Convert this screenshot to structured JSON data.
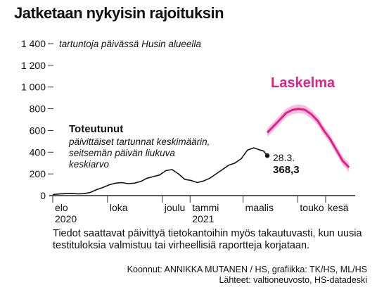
{
  "title": "Jatketaan nykyisin rajoituksin",
  "footnote": "Tiedot saattavat päivittyä tietokantoihin myös takautuvasti, kun uusia testituloksia valmistuu tai virheellisiä raportteja korjataan.",
  "credits": {
    "line1": "Koonnut: ANNIKKA MUTANEN / HS, grafiikka: TK/HS, ML/HS",
    "line2": "Lähteet: valtioneuvosto, HS-datadeski"
  },
  "colors": {
    "actual": "#111111",
    "forecast": "#e0218a",
    "band": "#f5a9cf",
    "axis": "#222222"
  },
  "chart_data": {
    "type": "line",
    "ylabel": "tartuntoja päivässä Husin alueella",
    "ylim": [
      0,
      1400
    ],
    "y_ticks": [
      0,
      200,
      400,
      600,
      800,
      1000,
      1200,
      1400
    ],
    "y_tick_labels": [
      "0",
      "200",
      "400",
      "600",
      "800",
      "1 000",
      "1 200",
      "1 400"
    ],
    "xlim": [
      "2020-08-01",
      "2021-06-30"
    ],
    "x_ticks": [
      {
        "date": "2020-08-01",
        "label": "elo",
        "sub": "2020"
      },
      {
        "date": "2020-10-01",
        "label": "loka",
        "sub": ""
      },
      {
        "date": "2020-12-01",
        "label": "joulu",
        "sub": ""
      },
      {
        "date": "2021-01-01",
        "label": "tammi",
        "sub": "2021"
      },
      {
        "date": "2021-03-01",
        "label": "maalis",
        "sub": ""
      },
      {
        "date": "2021-05-01",
        "label": "touko",
        "sub": ""
      },
      {
        "date": "2021-06-01",
        "label": "kesä",
        "sub": ""
      }
    ],
    "series": [
      {
        "name": "Toteutunut",
        "description": "päivittäiset tartunnat keskimäärin, seitsemän päivän liukuva keskiarvo",
        "points": [
          [
            "2020-08-01",
            10
          ],
          [
            "2020-08-08",
            15
          ],
          [
            "2020-08-15",
            18
          ],
          [
            "2020-08-22",
            20
          ],
          [
            "2020-08-29",
            16
          ],
          [
            "2020-09-05",
            18
          ],
          [
            "2020-09-12",
            30
          ],
          [
            "2020-09-19",
            55
          ],
          [
            "2020-09-26",
            75
          ],
          [
            "2020-10-03",
            100
          ],
          [
            "2020-10-10",
            115
          ],
          [
            "2020-10-17",
            120
          ],
          [
            "2020-10-24",
            110
          ],
          [
            "2020-10-31",
            115
          ],
          [
            "2020-11-07",
            130
          ],
          [
            "2020-11-14",
            160
          ],
          [
            "2020-11-21",
            175
          ],
          [
            "2020-11-28",
            190
          ],
          [
            "2020-12-05",
            230
          ],
          [
            "2020-12-12",
            240
          ],
          [
            "2020-12-19",
            200
          ],
          [
            "2020-12-26",
            150
          ],
          [
            "2021-01-02",
            140
          ],
          [
            "2021-01-09",
            120
          ],
          [
            "2021-01-16",
            135
          ],
          [
            "2021-01-23",
            160
          ],
          [
            "2021-01-30",
            200
          ],
          [
            "2021-02-06",
            240
          ],
          [
            "2021-02-13",
            280
          ],
          [
            "2021-02-20",
            300
          ],
          [
            "2021-02-27",
            340
          ],
          [
            "2021-03-06",
            420
          ],
          [
            "2021-03-13",
            440
          ],
          [
            "2021-03-20",
            420
          ],
          [
            "2021-03-24",
            410
          ],
          [
            "2021-03-28",
            368.3
          ]
        ]
      },
      {
        "name": "Laskelma",
        "points": [
          [
            "2021-03-28",
            580
          ],
          [
            "2021-04-04",
            640
          ],
          [
            "2021-04-11",
            700
          ],
          [
            "2021-04-18",
            760
          ],
          [
            "2021-04-25",
            790
          ],
          [
            "2021-05-02",
            800
          ],
          [
            "2021-05-09",
            790
          ],
          [
            "2021-05-16",
            750
          ],
          [
            "2021-05-23",
            690
          ],
          [
            "2021-05-30",
            600
          ],
          [
            "2021-06-06",
            520
          ],
          [
            "2021-06-13",
            420
          ],
          [
            "2021-06-20",
            320
          ],
          [
            "2021-06-27",
            260
          ]
        ],
        "band": 40
      }
    ],
    "annotation": {
      "date": "2021-03-28",
      "date_label": "28.3.",
      "value": 368.3,
      "value_label": "368,3"
    }
  }
}
